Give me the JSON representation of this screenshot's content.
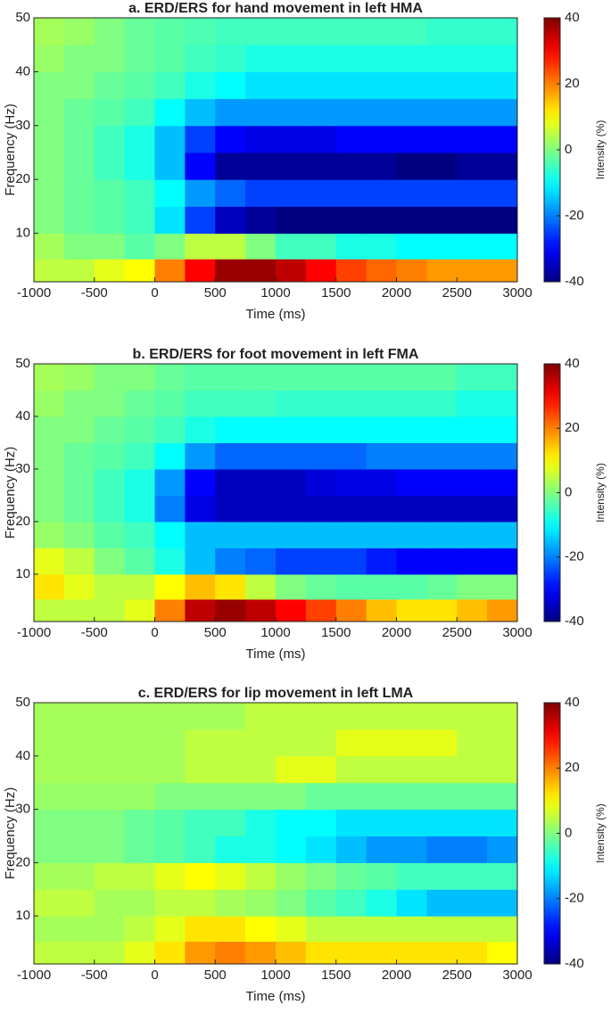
{
  "chart_data": [
    {
      "type": "heatmap",
      "title": "a. ERD/ERS for hand movement in left HMA",
      "x_label": "Time (ms)",
      "y_label": "Frequency (Hz)",
      "colormap": "jet",
      "x": [
        -875,
        -625,
        -375,
        -125,
        125,
        375,
        625,
        875,
        1125,
        1375,
        1625,
        1875,
        2125,
        2375,
        2625,
        2875
      ],
      "y": [
        3,
        7.5,
        12.5,
        17.5,
        22.5,
        27.5,
        32.5,
        37.5,
        42.5,
        47.5
      ],
      "z": [
        [
          5,
          5,
          8,
          10,
          20,
          30,
          38,
          38,
          35,
          30,
          25,
          22,
          20,
          18,
          18,
          18
        ],
        [
          3,
          0,
          0,
          -3,
          0,
          5,
          5,
          0,
          -5,
          -5,
          -8,
          -8,
          -10,
          -10,
          -10,
          -10
        ],
        [
          0,
          -2,
          -3,
          -5,
          -12,
          -25,
          -35,
          -38,
          -40,
          -40,
          -40,
          -40,
          -40,
          -40,
          -40,
          -40
        ],
        [
          0,
          -2,
          -3,
          -5,
          -10,
          -18,
          -22,
          -25,
          -25,
          -25,
          -25,
          -25,
          -25,
          -25,
          -25,
          -25
        ],
        [
          0,
          -2,
          -5,
          -8,
          -15,
          -30,
          -38,
          -38,
          -38,
          -38,
          -38,
          -38,
          -40,
          -40,
          -38,
          -38
        ],
        [
          0,
          -2,
          -5,
          -8,
          -15,
          -25,
          -30,
          -32,
          -32,
          -32,
          -30,
          -30,
          -30,
          -30,
          -30,
          -30
        ],
        [
          0,
          -2,
          -3,
          -5,
          -10,
          -15,
          -18,
          -18,
          -18,
          -18,
          -18,
          -18,
          -18,
          -18,
          -18,
          -18
        ],
        [
          0,
          0,
          -2,
          -3,
          -5,
          -8,
          -10,
          -12,
          -12,
          -12,
          -12,
          -12,
          -12,
          -12,
          -12,
          -12
        ],
        [
          2,
          0,
          0,
          -2,
          -3,
          -5,
          -6,
          -8,
          -8,
          -8,
          -8,
          -8,
          -8,
          -8,
          -8,
          -8
        ],
        [
          3,
          2,
          0,
          -2,
          -3,
          -4,
          -5,
          -5,
          -5,
          -5,
          -5,
          -5,
          -5,
          -6,
          -6,
          -6
        ]
      ],
      "xlim": [
        -1000,
        3000
      ],
      "ylim": [
        1,
        50
      ],
      "xticks": [
        -1000,
        -500,
        0,
        500,
        1000,
        1500,
        2000,
        2500,
        3000
      ],
      "yticks": [
        10,
        20,
        30,
        40,
        50
      ],
      "colorbar": {
        "label": "Intensity (%)",
        "clim": [
          -40,
          40
        ],
        "ticks": [
          -40,
          -20,
          0,
          20,
          40
        ]
      }
    },
    {
      "type": "heatmap",
      "title": "b. ERD/ERS for foot movement in left FMA",
      "x_label": "Time (ms)",
      "y_label": "Frequency (Hz)",
      "colormap": "jet",
      "x": [
        -875,
        -625,
        -375,
        -125,
        125,
        375,
        625,
        875,
        1125,
        1375,
        1625,
        1875,
        2125,
        2375,
        2625,
        2875
      ],
      "y": [
        3,
        7.5,
        12.5,
        17.5,
        22.5,
        27.5,
        32.5,
        37.5,
        42.5,
        47.5
      ],
      "z": [
        [
          5,
          5,
          5,
          8,
          20,
          35,
          38,
          35,
          30,
          25,
          20,
          15,
          12,
          12,
          15,
          18
        ],
        [
          12,
          8,
          5,
          5,
          10,
          15,
          12,
          5,
          0,
          -2,
          -3,
          -3,
          -3,
          -2,
          0,
          0
        ],
        [
          8,
          5,
          0,
          -3,
          -8,
          -15,
          -20,
          -22,
          -25,
          -25,
          -25,
          -28,
          -30,
          -30,
          -30,
          -30
        ],
        [
          2,
          0,
          -3,
          -5,
          -10,
          -15,
          -15,
          -15,
          -15,
          -15,
          -15,
          -15,
          -15,
          -15,
          -15,
          -15
        ],
        [
          0,
          -2,
          -5,
          -8,
          -20,
          -32,
          -35,
          -35,
          -35,
          -35,
          -35,
          -35,
          -35,
          -35,
          -35,
          -35
        ],
        [
          0,
          -2,
          -5,
          -8,
          -18,
          -30,
          -35,
          -35,
          -35,
          -33,
          -32,
          -32,
          -30,
          -30,
          -30,
          -30
        ],
        [
          0,
          -2,
          -3,
          -5,
          -10,
          -18,
          -22,
          -22,
          -22,
          -22,
          -22,
          -20,
          -20,
          -20,
          -20,
          -20
        ],
        [
          0,
          0,
          -2,
          -3,
          -5,
          -8,
          -10,
          -10,
          -10,
          -10,
          -10,
          -10,
          -10,
          -10,
          -10,
          -10
        ],
        [
          2,
          0,
          0,
          -2,
          -3,
          -5,
          -5,
          -5,
          -6,
          -6,
          -6,
          -6,
          -6,
          -6,
          -8,
          -8
        ],
        [
          3,
          2,
          0,
          0,
          -2,
          -3,
          -3,
          -3,
          -3,
          -3,
          -3,
          -3,
          -3,
          -3,
          -5,
          -5
        ]
      ],
      "xlim": [
        -1000,
        3000
      ],
      "ylim": [
        1,
        50
      ],
      "xticks": [
        -1000,
        -500,
        0,
        500,
        1000,
        1500,
        2000,
        2500,
        3000
      ],
      "yticks": [
        10,
        20,
        30,
        40,
        50
      ],
      "colorbar": {
        "label": "Intensity (%)",
        "clim": [
          -40,
          40
        ],
        "ticks": [
          -40,
          -20,
          0,
          20,
          40
        ]
      }
    },
    {
      "type": "heatmap",
      "title": "c. ERD/ERS for lip movement in left LMA",
      "x_label": "Time (ms)",
      "y_label": "Frequency (Hz)",
      "colormap": "jet",
      "x": [
        -875,
        -625,
        -375,
        -125,
        125,
        375,
        625,
        875,
        1125,
        1375,
        1625,
        1875,
        2125,
        2375,
        2625,
        2875
      ],
      "y": [
        3,
        7.5,
        12.5,
        17.5,
        22.5,
        27.5,
        32.5,
        37.5,
        42.5,
        47.5
      ],
      "z": [
        [
          5,
          5,
          5,
          8,
          12,
          18,
          20,
          18,
          15,
          12,
          12,
          12,
          12,
          12,
          12,
          10
        ],
        [
          3,
          3,
          3,
          5,
          8,
          12,
          12,
          10,
          8,
          5,
          5,
          5,
          5,
          5,
          5,
          5
        ],
        [
          5,
          5,
          3,
          3,
          5,
          5,
          3,
          2,
          0,
          -3,
          -5,
          -8,
          -12,
          -15,
          -15,
          -15
        ],
        [
          3,
          3,
          5,
          5,
          8,
          10,
          8,
          5,
          2,
          0,
          -2,
          -3,
          -5,
          -5,
          -5,
          -5
        ],
        [
          0,
          0,
          0,
          -2,
          -3,
          -5,
          -8,
          -8,
          -10,
          -12,
          -15,
          -18,
          -18,
          -20,
          -20,
          -18
        ],
        [
          0,
          0,
          0,
          -2,
          -3,
          -5,
          -5,
          -8,
          -10,
          -10,
          -12,
          -12,
          -12,
          -12,
          -12,
          -12
        ],
        [
          2,
          2,
          2,
          2,
          0,
          0,
          0,
          0,
          0,
          -2,
          -2,
          -2,
          -2,
          -2,
          -2,
          -2
        ],
        [
          3,
          3,
          3,
          3,
          3,
          5,
          5,
          5,
          8,
          8,
          5,
          5,
          5,
          5,
          5,
          5
        ],
        [
          3,
          3,
          3,
          3,
          3,
          5,
          5,
          5,
          5,
          5,
          8,
          8,
          8,
          8,
          5,
          5
        ],
        [
          3,
          3,
          3,
          3,
          3,
          3,
          3,
          5,
          5,
          5,
          5,
          5,
          5,
          5,
          5,
          5
        ]
      ],
      "xlim": [
        -1000,
        3000
      ],
      "ylim": [
        1,
        50
      ],
      "xticks": [
        -1000,
        -500,
        0,
        500,
        1000,
        1500,
        2000,
        2500,
        3000
      ],
      "yticks": [
        10,
        20,
        30,
        40,
        50
      ],
      "colorbar": {
        "label": "Intensity (%)",
        "clim": [
          -40,
          40
        ],
        "ticks": [
          -40,
          -20,
          0,
          20,
          40
        ]
      }
    }
  ]
}
